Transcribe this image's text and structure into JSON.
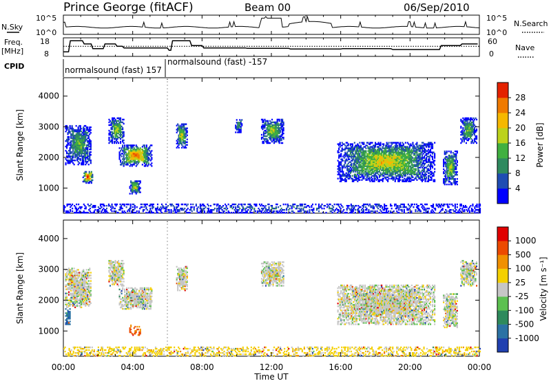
{
  "header": {
    "station": "Prince George (fitACF)",
    "beam": "Beam 00",
    "date": "06/Sep/2010"
  },
  "strip": {
    "nsky_label": "N.Sky",
    "nsky_ticks": [
      "10^5",
      "10^0"
    ],
    "nsearch_ticks": [
      "10^5",
      "10^0"
    ],
    "nsearch_label": "N.Search",
    "freq_label": "Freq.",
    "freq_unit": "[MHz]",
    "freq_ticks": [
      "18",
      "8"
    ],
    "nave_ticks": [
      "60",
      "0"
    ],
    "nave_label": "Nave",
    "cpid_label": "CPID",
    "cpid_1": "normalsound (fast) 157",
    "cpid_2": "normalsound (fast) -157"
  },
  "chart_data": [
    {
      "type": "heatmap",
      "name": "power",
      "ylabel": "Slant Range [km]",
      "yticks": [
        "4000",
        "3000",
        "2000",
        "1000"
      ],
      "ytick_values": [
        4000,
        3000,
        2000,
        1000
      ],
      "ylim": [
        180,
        4600
      ],
      "colorbar_label": "Power [dB]",
      "colorbar_ticks": [
        "28",
        "24",
        "20",
        "16",
        "12",
        "8",
        "4"
      ],
      "colorbar_colors": [
        "#0000ff",
        "#1f4db3",
        "#2f8a5f",
        "#40b040",
        "#bcd21c",
        "#f6b800",
        "#ef7a00",
        "#e42200"
      ],
      "patches": [
        {
          "t0": 0.1,
          "t1": 1.6,
          "r0": 1750,
          "r1": 3050,
          "level": 0.45
        },
        {
          "t0": 1.1,
          "t1": 1.7,
          "r0": 1150,
          "r1": 1550,
          "level": 0.95
        },
        {
          "t0": 2.6,
          "t1": 3.5,
          "r0": 2450,
          "r1": 3300,
          "level": 0.55
        },
        {
          "t0": 3.2,
          "t1": 5.1,
          "r0": 1700,
          "r1": 2400,
          "level": 0.85
        },
        {
          "t0": 3.8,
          "t1": 4.4,
          "r0": 800,
          "r1": 1250,
          "level": 0.6
        },
        {
          "t0": 6.5,
          "t1": 7.1,
          "r0": 2300,
          "r1": 3100,
          "level": 0.6
        },
        {
          "t0": 9.9,
          "t1": 10.3,
          "r0": 2800,
          "r1": 3250,
          "level": 0.4
        },
        {
          "t0": 11.4,
          "t1": 12.7,
          "r0": 2450,
          "r1": 3250,
          "level": 0.55
        },
        {
          "t0": 15.8,
          "t1": 21.4,
          "r0": 1200,
          "r1": 2500,
          "level": 0.65
        },
        {
          "t0": 21.9,
          "t1": 22.7,
          "r0": 1100,
          "r1": 2200,
          "level": 0.55
        },
        {
          "t0": 22.9,
          "t1": 23.8,
          "r0": 2450,
          "r1": 3300,
          "level": 0.5
        },
        {
          "t0": 0.0,
          "t1": 24.0,
          "r0": 180,
          "r1": 480,
          "level": 0.2
        }
      ]
    },
    {
      "type": "heatmap",
      "name": "velocity",
      "ylabel": "Slant Range [km]",
      "yticks": [
        "4000",
        "3000",
        "2000",
        "1000"
      ],
      "ytick_values": [
        4000,
        3000,
        2000,
        1000
      ],
      "ylim": [
        180,
        4600
      ],
      "xticks": [
        "00:00",
        "04:00",
        "08:00",
        "12:00",
        "16:00",
        "20:00",
        "00:00"
      ],
      "xtick_values": [
        0,
        4,
        8,
        12,
        16,
        20,
        24
      ],
      "xlim": [
        0,
        24
      ],
      "xlabel": "Time UT",
      "colorbar_label": "Velocity [m s⁻¹]",
      "colorbar_ticks": [
        "1000",
        "500",
        "100",
        "25",
        "-25",
        "-100",
        "-500",
        "-1000"
      ],
      "colorbar_colors": [
        "#2040b0",
        "#2b72a4",
        "#2e8a5c",
        "#5cc050",
        "#c6c6c6",
        "#f4d000",
        "#f09000",
        "#ec4a00",
        "#e00000"
      ],
      "patches": [
        {
          "t0": 0.1,
          "t1": 1.6,
          "r0": 1750,
          "r1": 3050,
          "level": 0.5
        },
        {
          "t0": 2.6,
          "t1": 3.5,
          "r0": 2450,
          "r1": 3300,
          "level": 0.5
        },
        {
          "t0": 3.2,
          "t1": 5.1,
          "r0": 1700,
          "r1": 2400,
          "level": 0.5
        },
        {
          "t0": 3.8,
          "t1": 4.4,
          "r0": 850,
          "r1": 1200,
          "level": 0.8
        },
        {
          "t0": 0.1,
          "t1": 0.4,
          "r0": 1200,
          "r1": 1700,
          "level": 0.15
        },
        {
          "t0": 6.5,
          "t1": 7.1,
          "r0": 2300,
          "r1": 3100,
          "level": 0.5
        },
        {
          "t0": 11.4,
          "t1": 12.7,
          "r0": 2450,
          "r1": 3250,
          "level": 0.5
        },
        {
          "t0": 15.8,
          "t1": 21.4,
          "r0": 1200,
          "r1": 2500,
          "level": 0.5
        },
        {
          "t0": 21.9,
          "t1": 22.7,
          "r0": 1100,
          "r1": 2200,
          "level": 0.5
        },
        {
          "t0": 22.9,
          "t1": 23.8,
          "r0": 2450,
          "r1": 3300,
          "level": 0.5
        },
        {
          "t0": 0.0,
          "t1": 24.0,
          "r0": 180,
          "r1": 480,
          "level": 0.6
        }
      ]
    }
  ]
}
